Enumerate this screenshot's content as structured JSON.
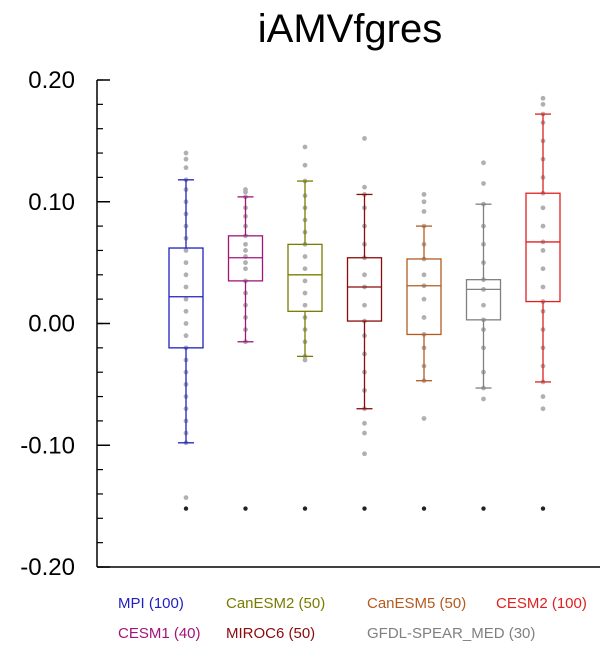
{
  "chart_data": {
    "type": "box",
    "title": "iAMVfgres",
    "xlabel": "",
    "ylabel": "",
    "ylim": [
      -0.2,
      0.2
    ],
    "y_ticks": [
      {
        "value": 0.2,
        "label": "0.20"
      },
      {
        "value": 0.1,
        "label": "0.10"
      },
      {
        "value": 0.0,
        "label": "0.00"
      },
      {
        "value": -0.1,
        "label": "-0.10"
      },
      {
        "value": -0.2,
        "label": "-0.20"
      }
    ],
    "y_minor_step": 0.02,
    "grid": false,
    "series": [
      {
        "name": "MPI",
        "count_label": "(100)",
        "color": "#1f1fbf",
        "min": -0.098,
        "q1": -0.02,
        "median": 0.022,
        "q3": 0.062,
        "max": 0.118,
        "points": [
          -0.143,
          -0.098,
          -0.09,
          -0.08,
          -0.07,
          -0.06,
          -0.05,
          -0.04,
          -0.03,
          -0.02,
          -0.01,
          0.0,
          0.01,
          0.02,
          0.03,
          0.04,
          0.05,
          0.06,
          0.07,
          0.08,
          0.09,
          0.1,
          0.11,
          0.118,
          0.128,
          0.135,
          0.14
        ]
      },
      {
        "name": "CESM1",
        "count_label": "(40)",
        "color": "#a0157a",
        "min": -0.015,
        "q1": 0.035,
        "median": 0.054,
        "q3": 0.072,
        "max": 0.104,
        "points": [
          -0.015,
          -0.005,
          0.005,
          0.015,
          0.025,
          0.035,
          0.045,
          0.05,
          0.055,
          0.06,
          0.065,
          0.072,
          0.08,
          0.088,
          0.095,
          0.104,
          0.108,
          0.11
        ]
      },
      {
        "name": "CanESM2",
        "count_label": "(50)",
        "color": "#7b7b00",
        "min": -0.027,
        "q1": 0.01,
        "median": 0.04,
        "q3": 0.065,
        "max": 0.117,
        "points": [
          -0.03,
          -0.027,
          -0.015,
          -0.005,
          0.005,
          0.015,
          0.025,
          0.035,
          0.045,
          0.055,
          0.065,
          0.075,
          0.085,
          0.095,
          0.105,
          0.117,
          0.13,
          0.145
        ]
      },
      {
        "name": "MIROC6",
        "count_label": "(50)",
        "color": "#8b0a0a",
        "min": -0.07,
        "q1": 0.002,
        "median": 0.03,
        "q3": 0.054,
        "max": 0.106,
        "points": [
          -0.107,
          -0.09,
          -0.082,
          -0.07,
          -0.055,
          -0.04,
          -0.025,
          -0.01,
          0.002,
          0.015,
          0.03,
          0.04,
          0.054,
          0.065,
          0.08,
          0.095,
          0.106,
          0.112,
          0.152
        ]
      },
      {
        "name": "CanESM5",
        "count_label": "(50)",
        "color": "#b35a1f",
        "min": -0.047,
        "q1": -0.009,
        "median": 0.031,
        "q3": 0.053,
        "max": 0.08,
        "points": [
          -0.078,
          -0.047,
          -0.035,
          -0.02,
          -0.009,
          0.005,
          0.02,
          0.031,
          0.04,
          0.053,
          0.065,
          0.08,
          0.092,
          0.1,
          0.106
        ]
      },
      {
        "name": "GFDL-SPEAR_MED",
        "count_label": "(30)",
        "color": "#808080",
        "min": -0.053,
        "q1": 0.003,
        "median": 0.028,
        "q3": 0.036,
        "max": 0.098,
        "points": [
          -0.062,
          -0.053,
          -0.04,
          -0.02,
          -0.005,
          0.003,
          0.015,
          0.028,
          0.036,
          0.05,
          0.065,
          0.08,
          0.098,
          0.115,
          0.132
        ]
      },
      {
        "name": "CESM2",
        "count_label": "(100)",
        "color": "#e02020",
        "min": -0.048,
        "q1": 0.018,
        "median": 0.067,
        "q3": 0.107,
        "max": 0.172,
        "points": [
          -0.07,
          -0.06,
          -0.048,
          -0.035,
          -0.02,
          -0.005,
          0.01,
          0.018,
          0.03,
          0.045,
          0.06,
          0.067,
          0.08,
          0.095,
          0.107,
          0.12,
          0.135,
          0.15,
          0.165,
          0.172,
          0.18,
          0.185
        ]
      }
    ],
    "reference_dots_value": -0.152,
    "legend_rows": [
      [
        "MPI",
        "CanESM2",
        "CanESM5",
        "CESM2"
      ],
      [
        "CESM1",
        "MIROC6",
        "GFDL-SPEAR_MED"
      ]
    ]
  },
  "colors": {
    "axis": "#000000",
    "points": "#b0b0b0",
    "reference_dot": "#222222"
  }
}
